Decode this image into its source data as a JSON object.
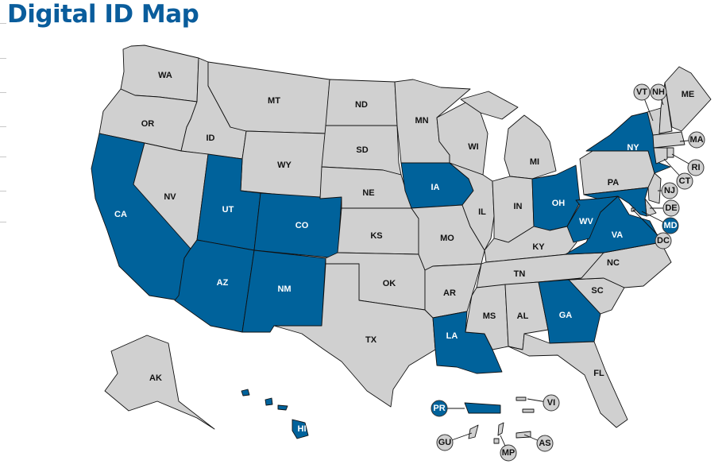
{
  "title": "Digital ID Map",
  "colors": {
    "digital_id": "#00629b",
    "no_digital_id": "#d0d0d0",
    "label_on_blue": "#ffffff",
    "label_on_gray": "#111111"
  },
  "states": [
    {
      "code": "WA",
      "digital_id": false
    },
    {
      "code": "OR",
      "digital_id": false
    },
    {
      "code": "CA",
      "digital_id": true
    },
    {
      "code": "ID",
      "digital_id": false
    },
    {
      "code": "NV",
      "digital_id": false
    },
    {
      "code": "MT",
      "digital_id": false
    },
    {
      "code": "WY",
      "digital_id": false
    },
    {
      "code": "UT",
      "digital_id": true
    },
    {
      "code": "CO",
      "digital_id": true
    },
    {
      "code": "AZ",
      "digital_id": true
    },
    {
      "code": "NM",
      "digital_id": true
    },
    {
      "code": "ND",
      "digital_id": false
    },
    {
      "code": "SD",
      "digital_id": false
    },
    {
      "code": "NE",
      "digital_id": false
    },
    {
      "code": "KS",
      "digital_id": false
    },
    {
      "code": "OK",
      "digital_id": false
    },
    {
      "code": "TX",
      "digital_id": false
    },
    {
      "code": "MN",
      "digital_id": false
    },
    {
      "code": "IA",
      "digital_id": true
    },
    {
      "code": "MO",
      "digital_id": false
    },
    {
      "code": "AR",
      "digital_id": false
    },
    {
      "code": "LA",
      "digital_id": true
    },
    {
      "code": "WI",
      "digital_id": false
    },
    {
      "code": "IL",
      "digital_id": false
    },
    {
      "code": "MI",
      "digital_id": false
    },
    {
      "code": "IN",
      "digital_id": false
    },
    {
      "code": "OH",
      "digital_id": true
    },
    {
      "code": "KY",
      "digital_id": false
    },
    {
      "code": "TN",
      "digital_id": false
    },
    {
      "code": "MS",
      "digital_id": false
    },
    {
      "code": "AL",
      "digital_id": false
    },
    {
      "code": "GA",
      "digital_id": true
    },
    {
      "code": "FL",
      "digital_id": false
    },
    {
      "code": "SC",
      "digital_id": false
    },
    {
      "code": "NC",
      "digital_id": false
    },
    {
      "code": "VA",
      "digital_id": true
    },
    {
      "code": "WV",
      "digital_id": true
    },
    {
      "code": "PA",
      "digital_id": false
    },
    {
      "code": "NY",
      "digital_id": true
    },
    {
      "code": "VT",
      "digital_id": false
    },
    {
      "code": "NH",
      "digital_id": false
    },
    {
      "code": "ME",
      "digital_id": false
    },
    {
      "code": "MA",
      "digital_id": false
    },
    {
      "code": "CT",
      "digital_id": false
    },
    {
      "code": "RI",
      "digital_id": false
    },
    {
      "code": "NJ",
      "digital_id": false
    },
    {
      "code": "DE",
      "digital_id": false
    },
    {
      "code": "MD",
      "digital_id": true
    },
    {
      "code": "DC",
      "digital_id": false
    },
    {
      "code": "AK",
      "digital_id": false
    },
    {
      "code": "HI",
      "digital_id": true
    },
    {
      "code": "PR",
      "digital_id": true
    },
    {
      "code": "VI",
      "digital_id": false
    },
    {
      "code": "GU",
      "digital_id": false
    },
    {
      "code": "MP",
      "digital_id": false
    },
    {
      "code": "AS",
      "digital_id": false
    }
  ]
}
